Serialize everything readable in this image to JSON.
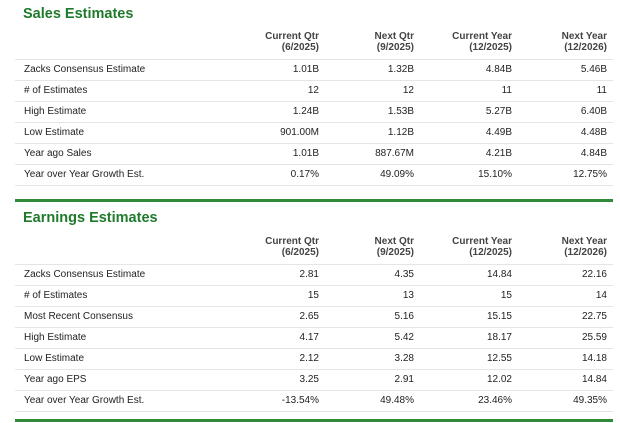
{
  "sales": {
    "title": "Sales Estimates",
    "headers": [
      {
        "line1": "Current Qtr",
        "line2": "(6/2025)"
      },
      {
        "line1": "Next Qtr",
        "line2": "(9/2025)"
      },
      {
        "line1": "Current Year",
        "line2": "(12/2025)"
      },
      {
        "line1": "Next Year",
        "line2": "(12/2026)"
      }
    ],
    "rows": [
      {
        "label": "Zacks Consensus Estimate",
        "values": [
          "1.01B",
          "1.32B",
          "4.84B",
          "5.46B"
        ]
      },
      {
        "label": "# of Estimates",
        "values": [
          "12",
          "12",
          "11",
          "11"
        ]
      },
      {
        "label": "High Estimate",
        "values": [
          "1.24B",
          "1.53B",
          "5.27B",
          "6.40B"
        ]
      },
      {
        "label": "Low Estimate",
        "values": [
          "901.00M",
          "1.12B",
          "4.49B",
          "4.48B"
        ]
      },
      {
        "label": "Year ago Sales",
        "values": [
          "1.01B",
          "887.67M",
          "4.21B",
          "4.84B"
        ]
      },
      {
        "label": "Year over Year Growth Est.",
        "values": [
          "0.17%",
          "49.09%",
          "15.10%",
          "12.75%"
        ]
      }
    ]
  },
  "earnings": {
    "title": "Earnings Estimates",
    "headers": [
      {
        "line1": "Current Qtr",
        "line2": "(6/2025)"
      },
      {
        "line1": "Next Qtr",
        "line2": "(9/2025)"
      },
      {
        "line1": "Current Year",
        "line2": "(12/2025)"
      },
      {
        "line1": "Next Year",
        "line2": "(12/2026)"
      }
    ],
    "rows": [
      {
        "label": "Zacks Consensus Estimate",
        "values": [
          "2.81",
          "4.35",
          "14.84",
          "22.16"
        ]
      },
      {
        "label": "# of Estimates",
        "values": [
          "15",
          "13",
          "15",
          "14"
        ]
      },
      {
        "label": "Most Recent Consensus",
        "values": [
          "2.65",
          "5.16",
          "15.15",
          "22.75"
        ]
      },
      {
        "label": "High Estimate",
        "values": [
          "4.17",
          "5.42",
          "18.17",
          "25.59"
        ]
      },
      {
        "label": "Low Estimate",
        "values": [
          "2.12",
          "3.28",
          "12.55",
          "14.18"
        ]
      },
      {
        "label": "Year ago EPS",
        "values": [
          "3.25",
          "2.91",
          "12.02",
          "14.84"
        ]
      },
      {
        "label": "Year over Year Growth Est.",
        "values": [
          "-13.54%",
          "49.48%",
          "23.46%",
          "49.35%"
        ]
      }
    ]
  },
  "colors": {
    "accent": "#2f8a3a",
    "title": "#1f7a2b"
  }
}
